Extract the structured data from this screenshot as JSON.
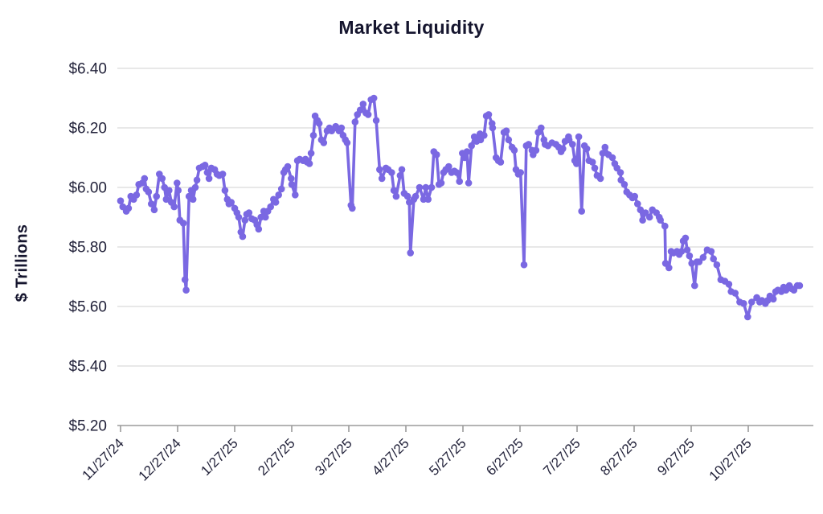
{
  "chart_data": {
    "type": "line",
    "title": "Market Liquidity",
    "ylabel": "$ Trillions",
    "xlabel": "",
    "ylim": [
      5.2,
      6.4
    ],
    "grid": "horizontal",
    "legend": "none",
    "colors": {
      "line": "#7a68e2",
      "marker": "#7a68e2",
      "grid": "#d9d9d9",
      "axis": "#9b9b9b",
      "text": "#22223a",
      "title": "#15152e",
      "background": "#ffffff"
    },
    "y_ticks": [
      {
        "label": "$6.40",
        "value": 6.4
      },
      {
        "label": "$6.20",
        "value": 6.2
      },
      {
        "label": "$6.00",
        "value": 6.0
      },
      {
        "label": "$5.80",
        "value": 5.8
      },
      {
        "label": "$5.60",
        "value": 5.6
      },
      {
        "label": "$5.40",
        "value": 5.4
      },
      {
        "label": "$5.20",
        "value": 5.2
      }
    ],
    "x_ticks": [
      "11/27/24",
      "12/27/24",
      "1/27/25",
      "2/27/25",
      "3/27/25",
      "4/27/25",
      "5/27/25",
      "6/27/25",
      "7/27/25",
      "8/27/25",
      "9/27/25",
      "10/27/25"
    ],
    "series": [
      {
        "name": "Market liquidity ($T)",
        "x_unit": "months since 11/27/24",
        "points": [
          [
            0,
            5.955
          ],
          [
            0.04,
            5.935
          ],
          [
            0.1,
            5.92
          ],
          [
            0.14,
            5.93
          ],
          [
            0.18,
            5.97
          ],
          [
            0.23,
            5.96
          ],
          [
            0.28,
            5.975
          ],
          [
            0.32,
            6.01
          ],
          [
            0.38,
            6.015
          ],
          [
            0.42,
            6.03
          ],
          [
            0.45,
            5.995
          ],
          [
            0.49,
            5.985
          ],
          [
            0.54,
            5.945
          ],
          [
            0.59,
            5.925
          ],
          [
            0.63,
            5.97
          ],
          [
            0.68,
            6.045
          ],
          [
            0.73,
            6.03
          ],
          [
            0.77,
            6.0
          ],
          [
            0.8,
            5.96
          ],
          [
            0.85,
            5.99
          ],
          [
            0.89,
            5.95
          ],
          [
            0.94,
            5.935
          ],
          [
            0.99,
            6.015
          ],
          [
            1.01,
            5.99
          ],
          [
            1.04,
            5.89
          ],
          [
            1.1,
            5.88
          ],
          [
            1.13,
            5.69
          ],
          [
            1.15,
            5.655
          ],
          [
            1.2,
            5.97
          ],
          [
            1.24,
            5.99
          ],
          [
            1.27,
            5.96
          ],
          [
            1.31,
            6.0
          ],
          [
            1.34,
            6.025
          ],
          [
            1.38,
            6.065
          ],
          [
            1.44,
            6.07
          ],
          [
            1.48,
            6.075
          ],
          [
            1.52,
            6.05
          ],
          [
            1.55,
            6.03
          ],
          [
            1.59,
            6.065
          ],
          [
            1.65,
            6.06
          ],
          [
            1.69,
            6.045
          ],
          [
            1.73,
            6.04
          ],
          [
            1.79,
            6.045
          ],
          [
            1.83,
            5.99
          ],
          [
            1.87,
            5.96
          ],
          [
            1.9,
            5.945
          ],
          [
            1.94,
            5.95
          ],
          [
            2.0,
            5.93
          ],
          [
            2.04,
            5.915
          ],
          [
            2.07,
            5.9
          ],
          [
            2.11,
            5.85
          ],
          [
            2.14,
            5.835
          ],
          [
            2.18,
            5.89
          ],
          [
            2.21,
            5.91
          ],
          [
            2.25,
            5.915
          ],
          [
            2.3,
            5.895
          ],
          [
            2.35,
            5.89
          ],
          [
            2.39,
            5.875
          ],
          [
            2.42,
            5.86
          ],
          [
            2.46,
            5.9
          ],
          [
            2.51,
            5.92
          ],
          [
            2.54,
            5.9
          ],
          [
            2.58,
            5.92
          ],
          [
            2.63,
            5.935
          ],
          [
            2.68,
            5.96
          ],
          [
            2.72,
            5.95
          ],
          [
            2.77,
            5.975
          ],
          [
            2.82,
            5.995
          ],
          [
            2.86,
            6.05
          ],
          [
            2.89,
            6.06
          ],
          [
            2.93,
            6.07
          ],
          [
            2.99,
            6.03
          ],
          [
            3.0,
            6.01
          ],
          [
            3.06,
            5.975
          ],
          [
            3.1,
            6.09
          ],
          [
            3.14,
            6.095
          ],
          [
            3.2,
            6.09
          ],
          [
            3.24,
            6.095
          ],
          [
            3.27,
            6.085
          ],
          [
            3.31,
            6.08
          ],
          [
            3.34,
            6.115
          ],
          [
            3.38,
            6.175
          ],
          [
            3.41,
            6.24
          ],
          [
            3.45,
            6.225
          ],
          [
            3.48,
            6.215
          ],
          [
            3.52,
            6.16
          ],
          [
            3.56,
            6.15
          ],
          [
            3.62,
            6.19
          ],
          [
            3.66,
            6.2
          ],
          [
            3.7,
            6.19
          ],
          [
            3.76,
            6.2
          ],
          [
            3.77,
            6.205
          ],
          [
            3.83,
            6.19
          ],
          [
            3.87,
            6.2
          ],
          [
            3.9,
            6.175
          ],
          [
            3.94,
            6.16
          ],
          [
            3.97,
            6.15
          ],
          [
            4.04,
            5.94
          ],
          [
            4.06,
            5.93
          ],
          [
            4.11,
            6.22
          ],
          [
            4.15,
            6.245
          ],
          [
            4.2,
            6.26
          ],
          [
            4.25,
            6.28
          ],
          [
            4.3,
            6.25
          ],
          [
            4.34,
            6.245
          ],
          [
            4.39,
            6.295
          ],
          [
            4.44,
            6.3
          ],
          [
            4.48,
            6.225
          ],
          [
            4.54,
            6.06
          ],
          [
            4.58,
            6.03
          ],
          [
            4.65,
            6.065
          ],
          [
            4.69,
            6.06
          ],
          [
            4.75,
            6.05
          ],
          [
            4.79,
            5.99
          ],
          [
            4.83,
            5.97
          ],
          [
            4.9,
            6.04
          ],
          [
            4.93,
            6.06
          ],
          [
            4.97,
            5.98
          ],
          [
            5.03,
            5.97
          ],
          [
            5.06,
            5.95
          ],
          [
            5.08,
            5.78
          ],
          [
            5.14,
            5.96
          ],
          [
            5.17,
            5.97
          ],
          [
            5.24,
            6.0
          ],
          [
            5.31,
            5.96
          ],
          [
            5.35,
            6.0
          ],
          [
            5.39,
            5.96
          ],
          [
            5.45,
            6.0
          ],
          [
            5.49,
            6.12
          ],
          [
            5.54,
            6.11
          ],
          [
            5.58,
            6.01
          ],
          [
            5.62,
            6.015
          ],
          [
            5.66,
            6.05
          ],
          [
            5.7,
            6.06
          ],
          [
            5.75,
            6.07
          ],
          [
            5.8,
            6.05
          ],
          [
            5.85,
            6.055
          ],
          [
            5.89,
            6.05
          ],
          [
            5.94,
            6.02
          ],
          [
            5.99,
            6.115
          ],
          [
            6.03,
            6.1
          ],
          [
            6.07,
            6.12
          ],
          [
            6.1,
            6.015
          ],
          [
            6.15,
            6.14
          ],
          [
            6.2,
            6.17
          ],
          [
            6.24,
            6.155
          ],
          [
            6.3,
            6.18
          ],
          [
            6.31,
            6.16
          ],
          [
            6.37,
            6.175
          ],
          [
            6.41,
            6.24
          ],
          [
            6.45,
            6.245
          ],
          [
            6.51,
            6.215
          ],
          [
            6.52,
            6.2
          ],
          [
            6.58,
            6.1
          ],
          [
            6.62,
            6.09
          ],
          [
            6.66,
            6.085
          ],
          [
            6.72,
            6.185
          ],
          [
            6.76,
            6.19
          ],
          [
            6.8,
            6.16
          ],
          [
            6.86,
            6.135
          ],
          [
            6.9,
            6.125
          ],
          [
            6.93,
            6.06
          ],
          [
            6.97,
            6.045
          ],
          [
            7.01,
            6.05
          ],
          [
            7.07,
            5.74
          ],
          [
            7.11,
            6.14
          ],
          [
            7.15,
            6.145
          ],
          [
            7.21,
            6.125
          ],
          [
            7.23,
            6.11
          ],
          [
            7.28,
            6.125
          ],
          [
            7.32,
            6.185
          ],
          [
            7.37,
            6.2
          ],
          [
            7.42,
            6.16
          ],
          [
            7.44,
            6.145
          ],
          [
            7.49,
            6.14
          ],
          [
            7.56,
            6.15
          ],
          [
            7.63,
            6.145
          ],
          [
            7.68,
            6.135
          ],
          [
            7.72,
            6.12
          ],
          [
            7.75,
            6.13
          ],
          [
            7.79,
            6.155
          ],
          [
            7.85,
            6.17
          ],
          [
            7.86,
            6.16
          ],
          [
            7.92,
            6.145
          ],
          [
            7.96,
            6.09
          ],
          [
            7.99,
            6.08
          ],
          [
            8.03,
            6.17
          ],
          [
            8.08,
            5.92
          ],
          [
            8.13,
            6.14
          ],
          [
            8.17,
            6.13
          ],
          [
            8.21,
            6.09
          ],
          [
            8.27,
            6.085
          ],
          [
            8.31,
            6.065
          ],
          [
            8.35,
            6.04
          ],
          [
            8.41,
            6.03
          ],
          [
            8.45,
            6.115
          ],
          [
            8.49,
            6.135
          ],
          [
            8.55,
            6.11
          ],
          [
            8.62,
            6.1
          ],
          [
            8.66,
            6.08
          ],
          [
            8.7,
            6.065
          ],
          [
            8.76,
            6.05
          ],
          [
            8.77,
            6.025
          ],
          [
            8.83,
            6.01
          ],
          [
            8.87,
            5.985
          ],
          [
            8.92,
            5.975
          ],
          [
            8.97,
            5.965
          ],
          [
            9.01,
            5.97
          ],
          [
            9.06,
            5.945
          ],
          [
            9.11,
            5.925
          ],
          [
            9.15,
            5.89
          ],
          [
            9.2,
            5.915
          ],
          [
            9.27,
            5.9
          ],
          [
            9.32,
            5.925
          ],
          [
            9.39,
            5.915
          ],
          [
            9.44,
            5.9
          ],
          [
            9.46,
            5.89
          ],
          [
            9.54,
            5.87
          ],
          [
            9.55,
            5.745
          ],
          [
            9.61,
            5.73
          ],
          [
            9.65,
            5.785
          ],
          [
            9.69,
            5.78
          ],
          [
            9.75,
            5.785
          ],
          [
            9.79,
            5.775
          ],
          [
            9.83,
            5.785
          ],
          [
            9.86,
            5.82
          ],
          [
            9.9,
            5.83
          ],
          [
            9.93,
            5.79
          ],
          [
            9.97,
            5.77
          ],
          [
            10.01,
            5.745
          ],
          [
            10.06,
            5.67
          ],
          [
            10.1,
            5.75
          ],
          [
            10.14,
            5.75
          ],
          [
            10.21,
            5.765
          ],
          [
            10.28,
            5.79
          ],
          [
            10.35,
            5.785
          ],
          [
            10.39,
            5.76
          ],
          [
            10.45,
            5.74
          ],
          [
            10.52,
            5.69
          ],
          [
            10.59,
            5.685
          ],
          [
            10.66,
            5.675
          ],
          [
            10.7,
            5.65
          ],
          [
            10.77,
            5.645
          ],
          [
            10.85,
            5.615
          ],
          [
            10.92,
            5.61
          ],
          [
            10.99,
            5.565
          ],
          [
            11.06,
            5.615
          ],
          [
            11.15,
            5.63
          ],
          [
            11.2,
            5.615
          ],
          [
            11.24,
            5.62
          ],
          [
            11.3,
            5.61
          ],
          [
            11.34,
            5.62
          ],
          [
            11.38,
            5.635
          ],
          [
            11.44,
            5.625
          ],
          [
            11.48,
            5.65
          ],
          [
            11.52,
            5.655
          ],
          [
            11.58,
            5.65
          ],
          [
            11.62,
            5.665
          ],
          [
            11.66,
            5.655
          ],
          [
            11.72,
            5.67
          ],
          [
            11.76,
            5.66
          ],
          [
            11.8,
            5.655
          ],
          [
            11.86,
            5.67
          ],
          [
            11.9,
            5.67
          ]
        ]
      }
    ]
  }
}
